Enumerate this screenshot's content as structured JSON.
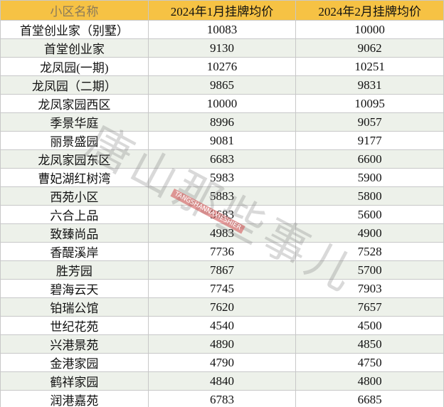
{
  "table": {
    "header": [
      "小区名称",
      "2024年1月挂牌均价",
      "2024年2月挂牌均价"
    ],
    "rows": [
      [
        "首堂创业家（别墅）",
        10083,
        10000
      ],
      [
        "首堂创业家",
        9130,
        9062
      ],
      [
        "龙凤园(一期)",
        10276,
        10251
      ],
      [
        "龙凤园（二期）",
        9865,
        9831
      ],
      [
        "龙凤家园西区",
        10000,
        10095
      ],
      [
        "季景华庭",
        8996,
        9057
      ],
      [
        "丽景盛园",
        9081,
        9177
      ],
      [
        "龙凤家园东区",
        6683,
        6600
      ],
      [
        "曹妃湖红树湾",
        5983,
        5900
      ],
      [
        "西苑小区",
        5883,
        5800
      ],
      [
        "六合上品",
        5683,
        5600
      ],
      [
        "致臻尚品",
        4983,
        4900
      ],
      [
        "香醍溪岸",
        7736,
        7528
      ],
      [
        "胜芳园",
        7867,
        5700
      ],
      [
        "碧海云天",
        7745,
        7903
      ],
      [
        "铂瑞公馆",
        7620,
        7657
      ],
      [
        "世纪花苑",
        4540,
        4500
      ],
      [
        "兴港景苑",
        4890,
        4850
      ],
      [
        "金港家园",
        4790,
        4750
      ],
      [
        "鹤祥家园",
        4840,
        4800
      ],
      [
        "润港嘉苑",
        6783,
        6685
      ]
    ]
  },
  "watermark": {
    "text": "唐山那些事儿",
    "subtext": "TANGSHANNAXIESHIER"
  }
}
